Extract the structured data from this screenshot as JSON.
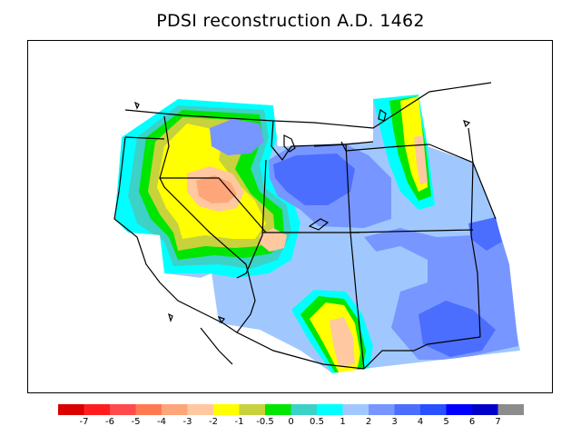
{
  "title": "PDSI reconstruction A.D. 1462",
  "colorbar": {
    "colors": [
      "#d90000",
      "#ff1e1e",
      "#ff4b4b",
      "#ff7a52",
      "#ffa57a",
      "#ffc8a0",
      "#ffff00",
      "#c8d23c",
      "#00e600",
      "#3cd2c8",
      "#00ffff",
      "#a0c8ff",
      "#7896ff",
      "#4b6eff",
      "#2850ff",
      "#0000ff",
      "#0000c8",
      "#8c8c8c"
    ],
    "labels": [
      "-7",
      "-6",
      "-5",
      "-4",
      "-3",
      "-2",
      "-1",
      "-0.5",
      "0",
      "0.5",
      "1",
      "2",
      "3",
      "4",
      "5",
      "6",
      "7"
    ]
  },
  "palette": {
    "light_blue": "#a0c8ff",
    "mid_blue": "#7896ff",
    "blue": "#4b6eff",
    "dark_blue": "#2850ff",
    "cyan": "#00ffff",
    "teal": "#3cd2c8",
    "green": "#00e600",
    "olive": "#c8d23c",
    "yellow": "#ffff00",
    "peach": "#ffc8a0",
    "salmon": "#ffa57a",
    "orange": "#ff7a52"
  }
}
